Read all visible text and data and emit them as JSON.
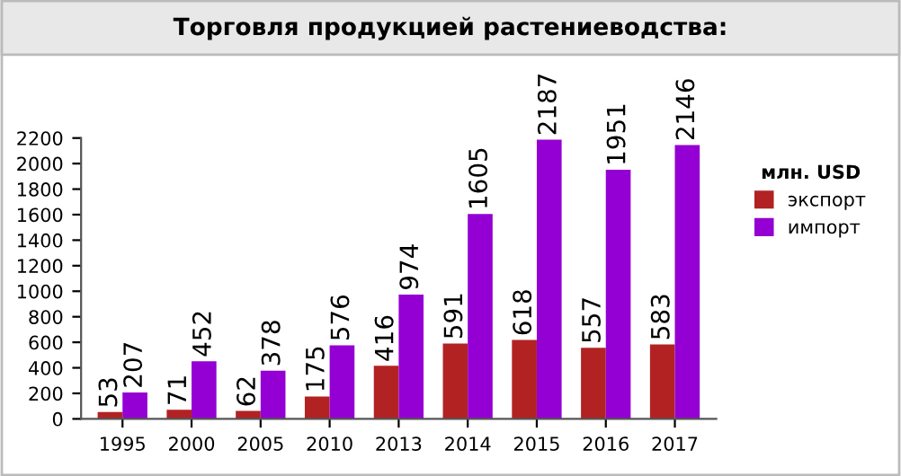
{
  "chart_data": {
    "type": "bar",
    "title": "Торговля продукцией растениеводства:",
    "categories": [
      "1995",
      "2000",
      "2005",
      "2010",
      "2013",
      "2014",
      "2015",
      "2016",
      "2017"
    ],
    "series": [
      {
        "name": "экспорт",
        "color": "#b22222",
        "values": [
          53,
          71,
          62,
          175,
          416,
          591,
          618,
          557,
          583
        ]
      },
      {
        "name": "импорт",
        "color": "#9400d3",
        "values": [
          207,
          452,
          378,
          576,
          974,
          1605,
          2187,
          1951,
          2146
        ]
      }
    ],
    "legend_title": "млн. USD",
    "legend": "right",
    "ylim": [
      0,
      2200
    ],
    "yticks": [
      0,
      200,
      400,
      600,
      800,
      1000,
      1200,
      1400,
      1600,
      1800,
      2000,
      2200
    ],
    "grid": false,
    "data_labels": true
  }
}
